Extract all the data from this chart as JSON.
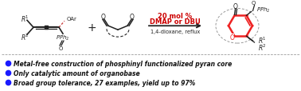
{
  "bg_color": "#ffffff",
  "bullet_color": "#1a1aff",
  "bullet_points": [
    "Metal-free construction of phosphinyl functionalized pyran core",
    "Only catalytic amount of organobase",
    "Broad group tolerance, 27 examples, yield up to 97%"
  ],
  "condition_color": "#cc0000",
  "condition_line1": "20 mol %",
  "condition_line2": "DMAP or DBU",
  "condition_line3": "1,4-dioxane, reflux",
  "highlight_color": "#ee2222",
  "divider_color": "#888888",
  "dark": "#222222"
}
